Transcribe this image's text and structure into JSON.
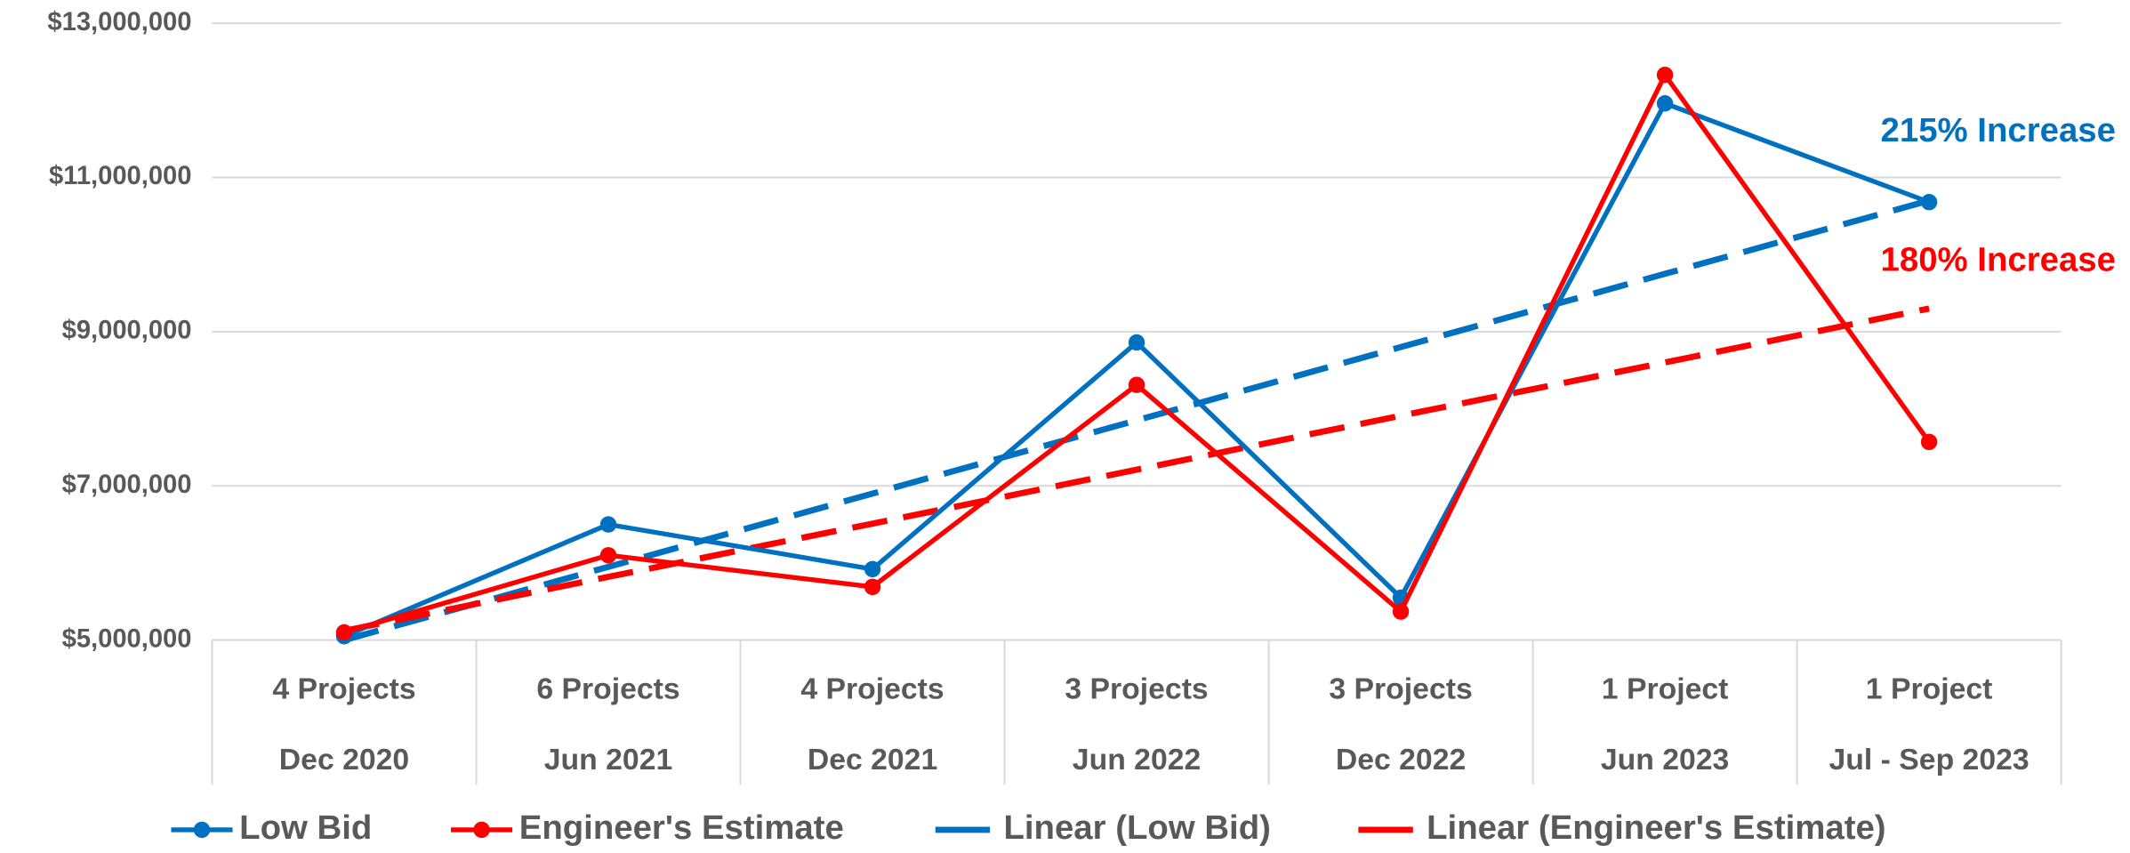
{
  "chart_data": {
    "type": "line",
    "categories": [
      [
        "4 Projects",
        "Dec 2020"
      ],
      [
        "6 Projects",
        "Jun 2021"
      ],
      [
        "4 Projects",
        "Dec 2021"
      ],
      [
        "3 Projects",
        "Jun 2022"
      ],
      [
        "3 Projects",
        "Dec 2022"
      ],
      [
        "1 Project",
        "Jun 2023"
      ],
      [
        "1 Project",
        "Jul - Sep 2023"
      ]
    ],
    "series": [
      {
        "name": "Low Bid",
        "color": "#0070c0",
        "dashed": false,
        "markers": true,
        "values": [
          5050000,
          6500000,
          5920000,
          8860000,
          5550000,
          11960000,
          10680000
        ]
      },
      {
        "name": "Engineer's Estimate",
        "color": "#ff0000",
        "dashed": false,
        "markers": true,
        "values": [
          5100000,
          6100000,
          5690000,
          8310000,
          5370000,
          12330000,
          7570000
        ]
      },
      {
        "name": "Linear (Low Bid)",
        "color": "#0070c0",
        "dashed": true,
        "markers": false,
        "values": [
          5000000,
          5950000,
          6900000,
          7850000,
          8800000,
          9750000,
          10700000
        ]
      },
      {
        "name": "Linear (Engineer's Estimate)",
        "color": "#ff0000",
        "dashed": true,
        "markers": false,
        "values": [
          5120000,
          5820000,
          6510000,
          7210000,
          7910000,
          8600000,
          9300000
        ]
      }
    ],
    "ylim": [
      5000000,
      13000000
    ],
    "yticks": [
      {
        "value": 5000000,
        "label": "$5,000,000"
      },
      {
        "value": 7000000,
        "label": "$7,000,000"
      },
      {
        "value": 9000000,
        "label": "$9,000,000"
      },
      {
        "value": 11000000,
        "label": "$11,000,000"
      },
      {
        "value": 13000000,
        "label": "$13,000,000"
      }
    ],
    "grid": true,
    "legend": "bottom",
    "annotations": [
      {
        "text": "215% Increase",
        "color": "#0070c0"
      },
      {
        "text": "180% Increase",
        "color": "#ff0000"
      }
    ]
  }
}
